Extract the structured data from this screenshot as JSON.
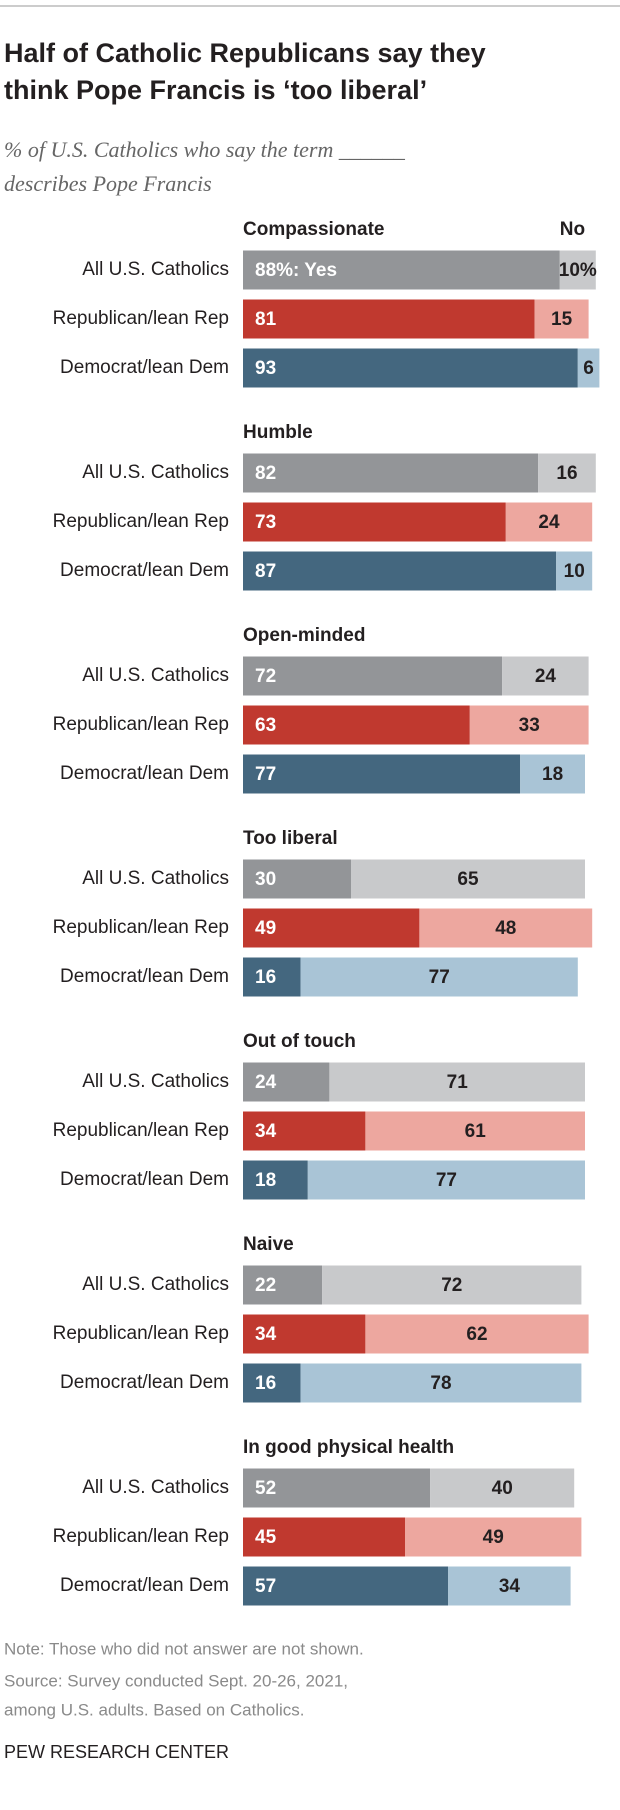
{
  "chart_data": {
    "type": "stacked-bar",
    "title_lines": [
      "Half of Catholic Republicans say they",
      "think Pope Francis is ‘too liberal’"
    ],
    "subtitle_lines": [
      "% of U.S. Catholics who say the term ______",
      "describes Pope Francis"
    ],
    "no_label": "No",
    "xlim": [
      0,
      100
    ],
    "groups": [
      {
        "name": "All U.S. Catholics",
        "colors": [
          "#939598",
          "#c8c9cb"
        ]
      },
      {
        "name": "Republican/lean Rep",
        "colors": [
          "#c0392f",
          "#eda79f"
        ]
      },
      {
        "name": "Democrat/lean Dem",
        "colors": [
          "#44677f",
          "#a9c4d6"
        ]
      }
    ],
    "panels": [
      {
        "title": "Compassionate",
        "yes": [
          88,
          81,
          93
        ],
        "no": [
          10,
          15,
          6
        ],
        "yes_value_labels": [
          "88%: Yes",
          "81",
          "93"
        ],
        "no_value_labels": [
          "10%",
          "15",
          "6"
        ]
      },
      {
        "title": "Humble",
        "yes": [
          82,
          73,
          87
        ],
        "no": [
          16,
          24,
          10
        ]
      },
      {
        "title": "Open-minded",
        "yes": [
          72,
          63,
          77
        ],
        "no": [
          24,
          33,
          18
        ]
      },
      {
        "title": "Too liberal",
        "yes": [
          30,
          49,
          16
        ],
        "no": [
          65,
          48,
          77
        ]
      },
      {
        "title": "Out of touch",
        "yes": [
          24,
          34,
          18
        ],
        "no": [
          71,
          61,
          77
        ]
      },
      {
        "title": "Naive",
        "yes": [
          22,
          34,
          16
        ],
        "no": [
          72,
          62,
          78
        ]
      },
      {
        "title": "In good physical health",
        "yes": [
          52,
          45,
          57
        ],
        "no": [
          40,
          49,
          34
        ]
      }
    ],
    "notes": [
      "Note: Those who did not answer are not shown.",
      "Source: Survey conducted Sept. 20-26, 2021,",
      "among U.S. adults. Based on Catholics."
    ],
    "source": "PEW RESEARCH CENTER"
  }
}
